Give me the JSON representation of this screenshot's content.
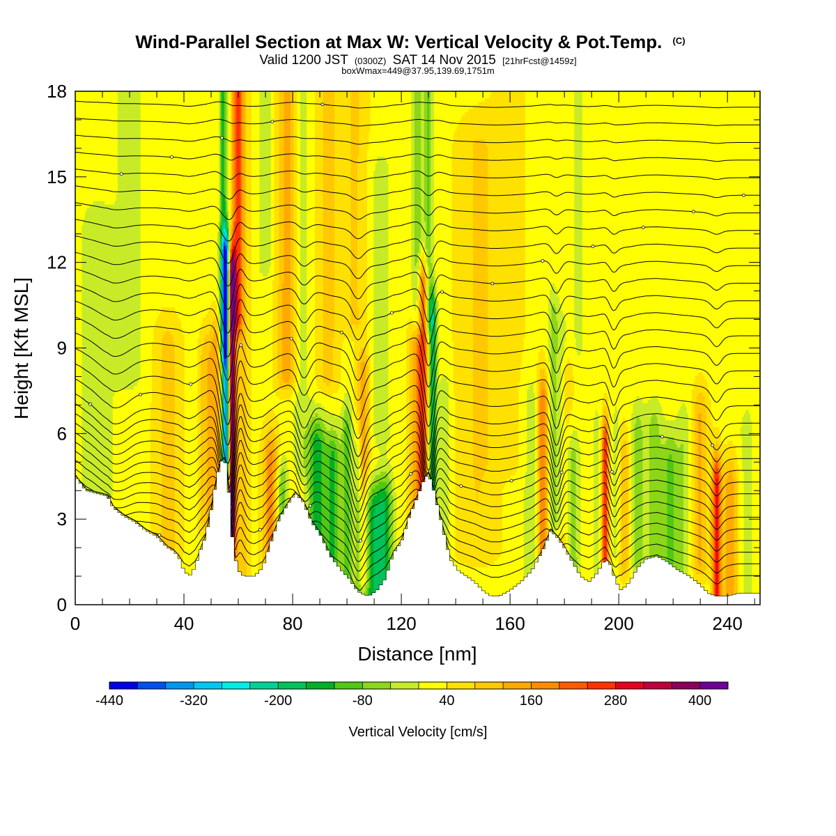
{
  "header": {
    "title": "Wind-Parallel Section at Max W: Vertical Velocity & Pot.Temp.",
    "copyright": "(C)",
    "subtitle_valid": "Valid 1200 JST",
    "subtitle_z": "(0300Z)",
    "subtitle_date": "SAT 14 Nov 2015",
    "subtitle_fcst": "[21hrFcst@1459z]",
    "line3": "boxWmax=449@37.95,139.69,1751m"
  },
  "chart_data": {
    "type": "heatmap",
    "xlabel": "Distance [nm]",
    "ylabel": "Height [Kft MSL]",
    "xlim": [
      0,
      252
    ],
    "ylim": [
      0,
      18
    ],
    "xticks": [
      0,
      40,
      80,
      120,
      160,
      200,
      240
    ],
    "yticks": [
      0,
      3,
      6,
      9,
      12,
      15,
      18
    ],
    "background_w": 25,
    "terrain": [
      [
        0,
        4.5
      ],
      [
        4,
        4.0
      ],
      [
        8,
        3.9
      ],
      [
        12,
        3.8
      ],
      [
        14,
        3.4
      ],
      [
        18,
        3.1
      ],
      [
        22,
        2.9
      ],
      [
        26,
        2.6
      ],
      [
        30,
        2.4
      ],
      [
        34,
        2.0
      ],
      [
        36,
        1.9
      ],
      [
        38,
        1.7
      ],
      [
        40,
        1.2
      ],
      [
        42,
        1.0
      ],
      [
        44,
        1.3
      ],
      [
        46,
        1.9
      ],
      [
        48,
        2.4
      ],
      [
        50,
        3.3
      ],
      [
        52,
        4.4
      ],
      [
        53.5,
        5.0
      ],
      [
        55,
        5.1
      ],
      [
        56,
        4.6
      ],
      [
        57,
        3.4
      ],
      [
        58,
        2.2
      ],
      [
        59,
        1.6
      ],
      [
        60,
        1.2
      ],
      [
        62,
        1.0
      ],
      [
        66,
        1.0
      ],
      [
        69,
        1.3
      ],
      [
        72,
        2.2
      ],
      [
        75,
        3.0
      ],
      [
        78,
        3.5
      ],
      [
        81,
        3.9
      ],
      [
        84,
        3.6
      ],
      [
        87,
        2.9
      ],
      [
        90,
        2.5
      ],
      [
        94,
        1.7
      ],
      [
        98,
        1.2
      ],
      [
        101,
        0.9
      ],
      [
        103,
        0.6
      ],
      [
        105,
        0.4
      ],
      [
        108,
        0.3
      ],
      [
        111,
        0.5
      ],
      [
        114,
        0.9
      ],
      [
        117,
        1.8
      ],
      [
        120,
        2.2
      ],
      [
        123,
        3.1
      ],
      [
        126,
        3.8
      ],
      [
        128,
        4.3
      ],
      [
        130,
        4.6
      ],
      [
        132,
        4.0
      ],
      [
        134,
        3.2
      ],
      [
        136,
        2.4
      ],
      [
        138,
        1.6
      ],
      [
        141,
        1.2
      ],
      [
        144,
        1.0
      ],
      [
        147,
        0.8
      ],
      [
        150,
        0.5
      ],
      [
        153,
        0.3
      ],
      [
        156,
        0.3
      ],
      [
        160,
        0.5
      ],
      [
        164,
        0.8
      ],
      [
        168,
        1.2
      ],
      [
        172,
        1.9
      ],
      [
        175,
        2.6
      ],
      [
        178,
        2.3
      ],
      [
        180,
        2.0
      ],
      [
        183,
        1.5
      ],
      [
        186,
        1.0
      ],
      [
        189,
        0.8
      ],
      [
        192,
        1.1
      ],
      [
        195,
        1.6
      ],
      [
        197,
        1.4
      ],
      [
        199,
        0.8
      ],
      [
        201,
        0.5
      ],
      [
        204,
        0.8
      ],
      [
        207,
        1.3
      ],
      [
        210,
        1.6
      ],
      [
        214,
        1.7
      ],
      [
        218,
        1.5
      ],
      [
        222,
        1.2
      ],
      [
        226,
        1.0
      ],
      [
        230,
        0.7
      ],
      [
        233,
        0.4
      ],
      [
        236,
        0.3
      ],
      [
        240,
        0.3
      ],
      [
        244,
        0.4
      ],
      [
        248,
        0.4
      ],
      [
        252,
        0.4
      ]
    ],
    "features": [
      {
        "x": 55.5,
        "zmin": 4.5,
        "zmax": 12,
        "wx": 1.6,
        "w": -420
      },
      {
        "x": 54.5,
        "zmin": 9,
        "zmax": 18,
        "wx": 1.4,
        "w": -150
      },
      {
        "x": 57.5,
        "zmin": 2.0,
        "zmax": 11.5,
        "wx": 1.3,
        "w": 440
      },
      {
        "x": 59.5,
        "zmin": 10,
        "zmax": 18,
        "wx": 1.8,
        "w": 160
      },
      {
        "x": 61,
        "zmin": 1.0,
        "zmax": 18,
        "wx": 2.8,
        "w": 90
      },
      {
        "x": 52,
        "zmin": 3,
        "zmax": 9,
        "wx": 2.5,
        "w": 120
      },
      {
        "x": 48,
        "zmin": 3,
        "zmax": 8.5,
        "wx": 2.5,
        "w": 80
      },
      {
        "x": 8,
        "zmin": 4,
        "zmax": 13,
        "wx": 6,
        "w": -60
      },
      {
        "x": 20,
        "zmin": 8,
        "zmax": 18,
        "wx": 6,
        "w": -40
      },
      {
        "x": 34,
        "zmin": 2,
        "zmax": 9,
        "wx": 5,
        "w": 70
      },
      {
        "x": 72,
        "zmin": 1.2,
        "zmax": 5,
        "wx": 3,
        "w": 150
      },
      {
        "x": 76,
        "zmin": 1.5,
        "zmax": 4,
        "wx": 2,
        "w": -130
      },
      {
        "x": 83,
        "zmin": 5,
        "zmax": 18,
        "wx": 3,
        "w": -50
      },
      {
        "x": 78,
        "zmin": 8,
        "zmax": 18,
        "wx": 4,
        "w": 110
      },
      {
        "x": 89,
        "zmin": 1.5,
        "zmax": 5.5,
        "wx": 3.5,
        "w": -170
      },
      {
        "x": 95,
        "zmin": 1.0,
        "zmax": 5,
        "wx": 2.5,
        "w": -150
      },
      {
        "x": 100,
        "zmin": 0.8,
        "zmax": 6,
        "wx": 2,
        "w": -120
      },
      {
        "x": 104,
        "zmin": 0.6,
        "zmax": 5,
        "wx": 1.5,
        "w": -100
      },
      {
        "x": 106,
        "zmin": 1.0,
        "zmax": 8,
        "wx": 2.5,
        "w": 130
      },
      {
        "x": 109,
        "zmin": 0.5,
        "zmax": 3.2,
        "wx": 4,
        "w": -180
      },
      {
        "x": 114,
        "zmin": 0.5,
        "zmax": 3.5,
        "wx": 3,
        "w": -150
      },
      {
        "x": 103,
        "zmin": 10,
        "zmax": 18,
        "wx": 5,
        "w": 60
      },
      {
        "x": 112,
        "zmin": 6,
        "zmax": 15,
        "wx": 5,
        "w": -40
      },
      {
        "x": 128,
        "zmin": 3.6,
        "zmax": 11,
        "wx": 2,
        "w": 230
      },
      {
        "x": 125,
        "zmin": 2.5,
        "zmax": 9,
        "wx": 2.5,
        "w": 100
      },
      {
        "x": 131.5,
        "zmin": 3.5,
        "zmax": 10,
        "wx": 1.5,
        "w": -210
      },
      {
        "x": 130,
        "zmin": 10,
        "zmax": 18,
        "wx": 1.5,
        "w": -110
      },
      {
        "x": 126,
        "zmin": 10,
        "zmax": 18,
        "wx": 2,
        "w": -100
      },
      {
        "x": 136,
        "zmin": 2,
        "zmax": 7,
        "wx": 2,
        "w": -70
      },
      {
        "x": 148,
        "zmin": 2,
        "zmax": 16,
        "wx": 8,
        "w": 55
      },
      {
        "x": 160,
        "zmin": 5,
        "zmax": 18,
        "wx": 10,
        "w": 20
      },
      {
        "x": 168,
        "zmin": 1.0,
        "zmax": 7,
        "wx": 3,
        "w": -60
      },
      {
        "x": 172,
        "zmin": 1.5,
        "zmax": 7,
        "wx": 2,
        "w": 180
      },
      {
        "x": 176,
        "zmin": 3,
        "zmax": 10,
        "wx": 2,
        "w": -80
      },
      {
        "x": 179,
        "zmin": 3,
        "zmax": 9,
        "wx": 2,
        "w": -60
      },
      {
        "x": 183,
        "zmin": 1.0,
        "zmax": 5,
        "wx": 2.5,
        "w": -100
      },
      {
        "x": 185,
        "zmin": 9,
        "zmax": 18,
        "wx": 4,
        "w": -30
      },
      {
        "x": 195,
        "zmin": 1.5,
        "zmax": 5.5,
        "wx": 1.3,
        "w": 250
      },
      {
        "x": 192,
        "zmin": 1.0,
        "zmax": 6,
        "wx": 2,
        "w": -40
      },
      {
        "x": 199,
        "zmin": 2,
        "zmax": 6,
        "wx": 1.2,
        "w": -50
      },
      {
        "x": 202,
        "zmin": 1.5,
        "zmax": 5,
        "wx": 2,
        "w": 90
      },
      {
        "x": 207,
        "zmin": 1.5,
        "zmax": 6,
        "wx": 2.5,
        "w": -80
      },
      {
        "x": 213,
        "zmin": 1.7,
        "zmax": 6,
        "wx": 3,
        "w": -90
      },
      {
        "x": 219,
        "zmin": 1.2,
        "zmax": 5,
        "wx": 3,
        "w": -110
      },
      {
        "x": 224,
        "zmin": 1.0,
        "zmax": 6,
        "wx": 2.5,
        "w": -60
      },
      {
        "x": 230,
        "zmin": 1.5,
        "zmax": 6.5,
        "wx": 3,
        "w": 100
      },
      {
        "x": 236,
        "zmin": 0.3,
        "zmax": 4.2,
        "wx": 1.6,
        "w": 260
      },
      {
        "x": 241,
        "zmin": 0.4,
        "zmax": 4,
        "wx": 3,
        "w": 130
      },
      {
        "x": 247,
        "zmin": 0.4,
        "zmax": 6,
        "wx": 3,
        "w": -40
      },
      {
        "x": 180,
        "zmin": 2,
        "zmax": 8,
        "wx": 3,
        "w": 60
      },
      {
        "x": 93,
        "zmin": 8,
        "zmax": 18,
        "wx": 4,
        "w": 70
      },
      {
        "x": 70,
        "zmin": 12,
        "zmax": 18,
        "wx": 3,
        "w": -50
      }
    ],
    "colorbar": {
      "label": "Vertical Velocity [cm/s]",
      "levels": [
        -440,
        -400,
        -360,
        -320,
        -280,
        -240,
        -200,
        -160,
        -120,
        -80,
        -40,
        0,
        40,
        80,
        120,
        160,
        200,
        240,
        280,
        320,
        360,
        400,
        440
      ],
      "colors": [
        "#0000e6",
        "#0050f0",
        "#0096f0",
        "#00c8f5",
        "#00eee6",
        "#00d296",
        "#00c35a",
        "#00af28",
        "#50c814",
        "#8cd719",
        "#c8eb28",
        "#ffff00",
        "#ffe100",
        "#ffc800",
        "#ffaa00",
        "#ff8c00",
        "#ff5a00",
        "#ff3200",
        "#e6001e",
        "#be003c",
        "#8c005a",
        "#6e0096"
      ],
      "tick_labels": [
        "-440",
        "-320",
        "-200",
        "-80",
        "40",
        "160",
        "280",
        "400"
      ],
      "tick_values": [
        -440,
        -320,
        -200,
        -80,
        40,
        160,
        280,
        400
      ]
    }
  }
}
